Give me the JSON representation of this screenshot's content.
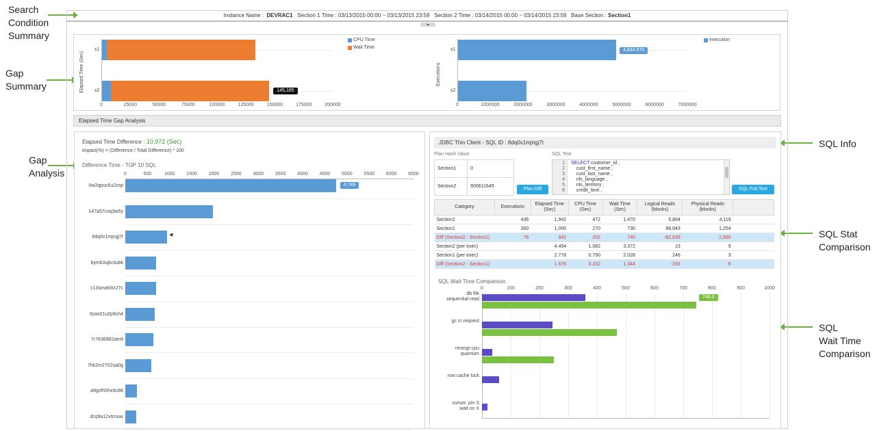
{
  "callouts": {
    "search": "Search\nCondition\nSummary",
    "gap_summary": "Gap\nSummary",
    "gap_analysis": "Gap\nAnalysis",
    "sql_info": "SQL Info",
    "sql_stat": "SQL Stat\nComparison",
    "sql_wait": "SQL\nWait Time\nComparison"
  },
  "search": {
    "instance_label": "Instance Name :",
    "instance_value": "DEVRAC1",
    "section1": "Section 1 Time : 03/13/2015 00:00  ~  03/13/2015 23:59",
    "section2": "Section 2 Time : 03/14/2015 00:00  ~  03/14/2015 23:59",
    "base_label": "Base Section :",
    "base_value": "Section1"
  },
  "colors": {
    "cpu": "#5b9bd5",
    "wait": "#ed7d31",
    "exec": "#5b9bd5",
    "diff": "#5b9bd5",
    "s1": "#5b4bc4",
    "s2": "#7ac143",
    "accent": "#29a7e1"
  },
  "summary": {
    "elapsed_ylabel": "Elapsed Time (Sec)",
    "exec_ylabel": "Executions",
    "legend_cpu": "CPU Time",
    "legend_wait": "Wait Time",
    "legend_exec": "execution",
    "cats": [
      "s1",
      "s2"
    ],
    "elapsed_ticks": [
      "0",
      "25000",
      "50000",
      "75000",
      "100000",
      "125000",
      "150000",
      "175000",
      "200000"
    ],
    "exec_ticks": [
      "0",
      "1000000",
      "2000000",
      "3000000",
      "4000000",
      "5000000",
      "6000000",
      "7000000"
    ],
    "tag_elapsed": "145,185",
    "tag_exec": "4,834,970"
  },
  "section_title": "Elapsed Time Gap Analysis",
  "gap": {
    "diff_label": "Elapsed Time Difference :",
    "diff_value": "10,972 (Sec)",
    "impact": "Impact(%) = (Difference / Total Difference) * 100",
    "chart_title": "Difference Time - TOP 10 SQL",
    "ticks": [
      "0",
      "500",
      "1000",
      "1500",
      "2000",
      "2500",
      "3000",
      "3500",
      "4000",
      "4500",
      "5000",
      "5500",
      "6000",
      "6500"
    ],
    "sqls": [
      "0w2qpuc6u2zsp",
      "147a57cxq3w5y",
      "8dq0v1mjngj7t",
      "bymb3ujkr3ubk",
      "c13sma6rkr27c",
      "0yas01u2p9ch4",
      "7r7636982atn9",
      "7hk2m2702ua0g",
      "a9gvfh5hx9u98",
      "dcq9a12vtcnuw"
    ],
    "tag": "4,749"
  },
  "sqlinfo": {
    "header": "JDBC Thin Client - SQL ID : 8dq0v1mjngj7t",
    "plan_hash_title": "Plan Hash Value",
    "plan_rows": [
      {
        "section": "Section1",
        "value": "0"
      },
      {
        "section": "Section2",
        "value": "900611645"
      }
    ],
    "plan_diff_btn": "Plan Diff",
    "sql_text_title": "SQL Text",
    "sql_lines": [
      "SELECT customer_id ,",
      "    cust_first_name ,",
      "    cust_last_name ,",
      "    nls_language ,",
      "    nls_territory ,",
      "    credit_limit ,"
    ],
    "sql_full_btn": "SQL Full Text"
  },
  "stat": {
    "headers": [
      "Category",
      "Executions",
      "Elapsed Time (Sec)",
      "CPU Time (Sec)",
      "Wait Time (Sec)",
      "Logical Reads (blocks)",
      "Physical Reads (blocks)"
    ],
    "rows": [
      [
        "Section2",
        "436",
        "1,942",
        "472",
        "1,470",
        "5,804",
        "4,119"
      ],
      [
        "Section1",
        "360",
        "1,000",
        "270",
        "730",
        "88,643",
        "1,254"
      ],
      [
        "Diff (Section2 - Section1)",
        "76",
        "942",
        "202",
        "740",
        "-82,839",
        "2,865"
      ],
      [
        "Section2 (per exec)",
        "",
        "4.454",
        "1.082",
        "3.372",
        "13",
        "9"
      ],
      [
        "Section1 (per exec)",
        "",
        "2.778",
        "0.750",
        "2.028",
        "246",
        "3"
      ],
      [
        "Diff (Section2 - Section1)",
        "",
        "1.676",
        "0.332",
        "1.344",
        "-233",
        "6"
      ]
    ]
  },
  "wait": {
    "title": "SQL Wait Time Comparison",
    "ticks": [
      "0",
      "100",
      "200",
      "300",
      "400",
      "500",
      "600",
      "700",
      "800",
      "900",
      "1000"
    ],
    "events": [
      {
        "l1": "db file",
        "l2": "sequential read"
      },
      {
        "l1": "gc cr request",
        "l2": ""
      },
      {
        "l1": "resmgr:cpu",
        "l2": "quantum"
      },
      {
        "l1": "row cache lock",
        "l2": ""
      },
      {
        "l1": "cursor: pin S",
        "l2": "wait on X"
      }
    ],
    "tag": "746.0"
  },
  "chart_data": [
    {
      "type": "bar",
      "ylabel": "Elapsed Time (Sec)",
      "categories": [
        "s1",
        "s2"
      ],
      "xlim": [
        0,
        200000
      ],
      "series": [
        {
          "name": "CPU Time",
          "values": [
            5000,
            8000
          ]
        },
        {
          "name": "Wait Time",
          "values": [
            128000,
            137185
          ]
        }
      ],
      "data_labels": [
        "145,185"
      ],
      "stacked": true,
      "orientation": "horizontal",
      "legend": "top-right"
    },
    {
      "type": "bar",
      "ylabel": "Executions",
      "categories": [
        "s1",
        "s2"
      ],
      "xlim": [
        0,
        7000000
      ],
      "series": [
        {
          "name": "execution",
          "values": [
            4834970,
            2100000
          ]
        }
      ],
      "data_labels": [
        "4,834,970"
      ],
      "orientation": "horizontal",
      "legend": "top-right"
    },
    {
      "type": "bar",
      "title": "Difference Time - TOP 10 SQL",
      "categories": [
        "0w2qpuc6u2zsp",
        "147a57cxq3w5y",
        "8dq0v1mjngj7t",
        "bymb3ujkr3ubk",
        "c13sma6rkr27c",
        "0yas01u2p9ch4",
        "7r7636982atn9",
        "7hk2m2702ua0g",
        "a9gvfh5hx9u98",
        "dcq9a12vtcnuw"
      ],
      "xlim": [
        0,
        6500
      ],
      "values": [
        4749,
        1970,
        942,
        700,
        690,
        660,
        630,
        580,
        260,
        240
      ],
      "data_labels": [
        "4,749"
      ],
      "orientation": "horizontal"
    },
    {
      "type": "bar",
      "title": "SQL Wait Time Comparison",
      "categories": [
        "db file sequential read",
        "gc cr request",
        "resmgr:cpu quantum",
        "row cache lock",
        "cursor: pin S wait on X"
      ],
      "xlim": [
        0,
        1000
      ],
      "series": [
        {
          "values": [
            360,
            245,
            35,
            60,
            20
          ]
        },
        {
          "values": [
            746,
            470,
            250,
            0,
            0
          ]
        }
      ],
      "data_labels": [
        "746.0"
      ],
      "orientation": "horizontal"
    }
  ]
}
